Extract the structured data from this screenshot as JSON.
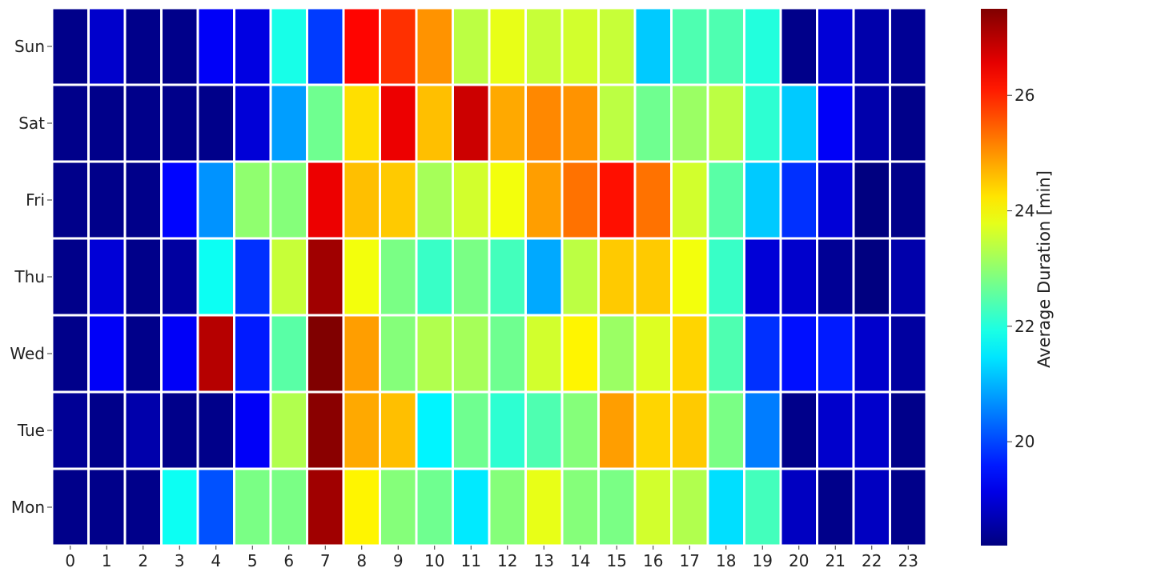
{
  "chart_data": {
    "type": "heatmap",
    "x_labels": [
      "0",
      "1",
      "2",
      "3",
      "4",
      "5",
      "6",
      "7",
      "8",
      "9",
      "10",
      "11",
      "12",
      "13",
      "14",
      "15",
      "16",
      "17",
      "18",
      "19",
      "20",
      "21",
      "22",
      "23"
    ],
    "y_labels": [
      "Sun",
      "Sat",
      "Fri",
      "Thu",
      "Wed",
      "Tue",
      "Mon"
    ],
    "values": [
      [
        18.3,
        18.9,
        18.3,
        18.3,
        19.3,
        19.1,
        21.9,
        19.9,
        26.3,
        25.9,
        25.0,
        23.4,
        23.8,
        23.5,
        23.6,
        23.5,
        21.2,
        22.4,
        22.4,
        22.0,
        18.3,
        19.0,
        18.6,
        18.4
      ],
      [
        18.3,
        18.3,
        18.3,
        18.3,
        18.3,
        19.0,
        20.8,
        22.7,
        24.3,
        26.5,
        24.6,
        26.8,
        24.8,
        25.1,
        25.0,
        23.4,
        22.7,
        23.1,
        23.4,
        22.1,
        21.2,
        19.3,
        18.6,
        18.3
      ],
      [
        18.3,
        18.3,
        18.3,
        19.4,
        20.7,
        23.0,
        22.9,
        26.5,
        24.6,
        24.5,
        23.2,
        23.6,
        23.9,
        24.9,
        25.3,
        26.2,
        25.3,
        23.6,
        22.5,
        21.2,
        19.8,
        19.0,
        18.2,
        18.3
      ],
      [
        18.3,
        19.0,
        18.3,
        18.5,
        21.8,
        19.8,
        23.5,
        27.2,
        23.9,
        22.8,
        22.2,
        22.8,
        22.3,
        20.9,
        23.4,
        24.5,
        24.5,
        23.9,
        22.2,
        19.0,
        18.9,
        18.4,
        18.2,
        18.6
      ],
      [
        18.3,
        19.3,
        18.3,
        19.3,
        27.0,
        19.6,
        22.5,
        27.5,
        24.9,
        22.9,
        23.3,
        23.2,
        22.7,
        23.6,
        24.1,
        23.1,
        23.7,
        24.4,
        22.4,
        19.8,
        19.5,
        19.6,
        18.9,
        18.5
      ],
      [
        18.4,
        18.3,
        18.6,
        18.3,
        18.3,
        19.3,
        23.3,
        27.4,
        24.8,
        24.6,
        21.6,
        22.7,
        22.1,
        22.4,
        22.9,
        24.9,
        24.4,
        24.5,
        22.8,
        20.5,
        18.3,
        18.9,
        18.9,
        18.3
      ],
      [
        18.3,
        18.3,
        18.3,
        21.8,
        20.1,
        22.8,
        22.8,
        27.2,
        24.1,
        22.9,
        22.7,
        21.5,
        22.9,
        23.8,
        22.9,
        22.8,
        23.6,
        23.3,
        21.4,
        22.3,
        18.8,
        18.3,
        18.8,
        18.3
      ]
    ],
    "vmin": 18.2,
    "vmax": 27.5,
    "colormap": "jet",
    "grid_line_color": "#ffffff",
    "colorbar": {
      "label": "Average Duration [min]",
      "ticks": [
        "20",
        "22",
        "24",
        "26"
      ],
      "position": "right"
    }
  }
}
